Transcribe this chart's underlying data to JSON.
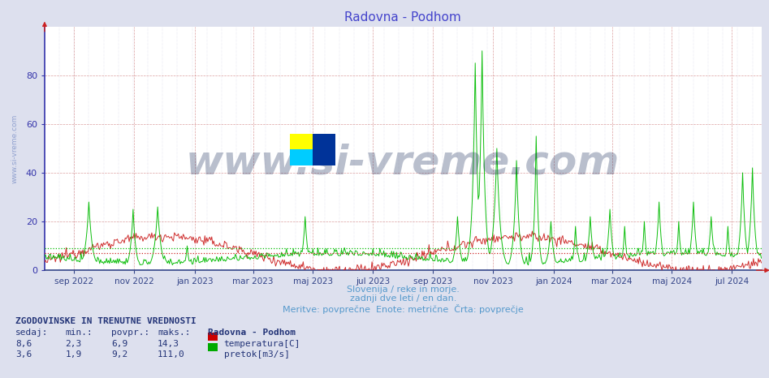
{
  "title": "Radovna - Podhom",
  "title_color": "#4444cc",
  "title_fontsize": 11,
  "bg_color": "#dde0ee",
  "plot_bg_color": "#ffffff",
  "xlabel_lines": [
    "Slovenija / reke in morje.",
    "zadnji dve leti / en dan.",
    "Meritve: povprečne  Enote: metrične  Črta: povprečje"
  ],
  "xlabel_color": "#5599cc",
  "xlabel_fontsize": 8,
  "ylabel_color": "#3333aa",
  "xticklabels": [
    "sep 2022",
    "nov 2022",
    "jan 2023",
    "mar 2023",
    "maj 2023",
    "jul 2023",
    "sep 2023",
    "nov 2023",
    "jan 2024",
    "mar 2024",
    "maj 2024",
    "jul 2024"
  ],
  "yticks": [
    0,
    20,
    40,
    60,
    80
  ],
  "ylim": [
    0,
    100
  ],
  "grid_vcolor": "#cc7777",
  "grid_hcolor": "#cc7777",
  "grid_dotcolor": "#aaaacc",
  "temp_color": "#cc2222",
  "flow_color": "#00bb00",
  "temp_mean": 6.9,
  "flow_mean": 9.2,
  "watermark_text": "www.si-vreme.com",
  "watermark_color": "#1a2d5a",
  "watermark_alpha": 0.3,
  "watermark_fontsize": 36,
  "side_text": "www.si-vreme.com",
  "side_color": "#3355aa",
  "side_alpha": 0.45,
  "side_fontsize": 6.5,
  "info_title": "ZGODOVINSKE IN TRENUTNE VREDNOSTI",
  "info_headers": [
    "sedaj:",
    "min.:",
    "povpr.:",
    "maks.:"
  ],
  "info_row1": [
    "8,6",
    "2,3",
    "6,9",
    "14,3"
  ],
  "info_row2": [
    "3,6",
    "1,9",
    "9,2",
    "111,0"
  ],
  "info_station": "Radovna - Podhom",
  "info_label1": "temperatura[C]",
  "info_label2": "pretok[m3/s]",
  "info_color1": "#cc0000",
  "info_color2": "#00aa00",
  "info_text_color": "#223377",
  "info_fontsize": 8,
  "n_points": 730
}
